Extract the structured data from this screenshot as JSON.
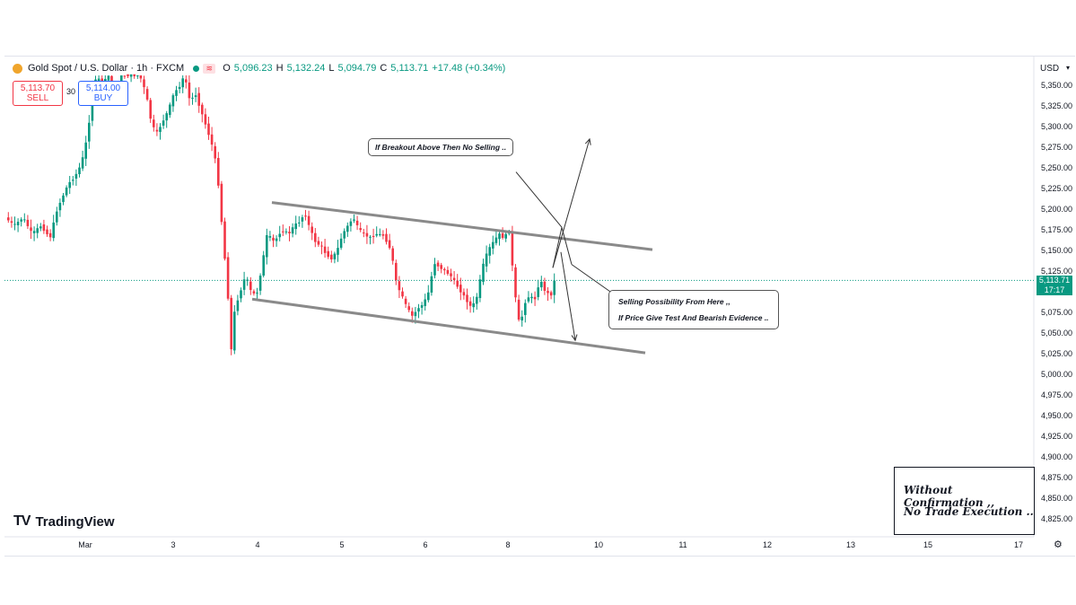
{
  "header": {
    "symbol": "Gold Spot / U.S. Dollar · 1h · FXCM",
    "open_label": "O",
    "open": "5,096.23",
    "high_label": "H",
    "high": "5,132.24",
    "low_label": "L",
    "low": "5,094.79",
    "close_label": "C",
    "close": "5,113.71",
    "change": "+17.48 (+0.34%)"
  },
  "trade": {
    "sell_price": "5,113.70",
    "sell_label": "SELL",
    "buy_price": "5,114.00",
    "buy_label": "BUY",
    "spread": "30"
  },
  "currency": "USD",
  "last_price_tag": {
    "price": "5,113.71",
    "countdown": "17:17"
  },
  "logo_text": "TradingView",
  "annotations": {
    "breakout_note": "If Breakout Above Then No Selling ..",
    "selling_note_line1": "Selling Possibility From Here ,,",
    "selling_note_line2": "If Price Give Test And Bearish Evidence ..",
    "confirm_line1": "Without Confirmation ,,",
    "confirm_line2": "No Trade Execution .."
  },
  "colors": {
    "up": "#089981",
    "down": "#f23645",
    "accent": "#2962ff",
    "line": "#888888"
  },
  "chart_data": {
    "type": "candlestick",
    "x_ticks": [
      "Mar",
      "3",
      "4",
      "5",
      "6",
      "8",
      "10",
      "11",
      "12",
      "13",
      "15",
      "17"
    ],
    "y_ticks": [
      "5,350.00",
      "5,325.00",
      "5,300.00",
      "5,275.00",
      "5,250.00",
      "5,225.00",
      "5,200.00",
      "5,175.00",
      "5,150.00",
      "5,125.00",
      "5,075.00",
      "5,050.00",
      "5,025.00",
      "5,000.00",
      "4,975.00",
      "4,950.00",
      "4,925.00",
      "4,900.00",
      "4,875.00",
      "4,850.00",
      "4,825.00"
    ],
    "ylim": [
      4810,
      5362
    ],
    "last_price": 5113.71,
    "candle_path": [
      [
        0,
        5190
      ],
      [
        10,
        5180
      ],
      [
        20,
        5190
      ],
      [
        30,
        5170
      ],
      [
        40,
        5180
      ],
      [
        50,
        5165
      ],
      [
        58,
        5200
      ],
      [
        64,
        5215
      ],
      [
        70,
        5230
      ],
      [
        78,
        5240
      ],
      [
        85,
        5255
      ],
      [
        92,
        5290
      ],
      [
        96,
        5330
      ],
      [
        102,
        5362
      ],
      [
        108,
        5350
      ],
      [
        115,
        5362
      ],
      [
        122,
        5340
      ],
      [
        130,
        5362
      ],
      [
        140,
        5362
      ],
      [
        150,
        5362
      ],
      [
        157,
        5340
      ],
      [
        162,
        5310
      ],
      [
        168,
        5290
      ],
      [
        175,
        5305
      ],
      [
        182,
        5320
      ],
      [
        188,
        5340
      ],
      [
        195,
        5350
      ],
      [
        200,
        5362
      ],
      [
        206,
        5330
      ],
      [
        212,
        5340
      ],
      [
        218,
        5320
      ],
      [
        224,
        5300
      ],
      [
        230,
        5280
      ],
      [
        236,
        5250
      ],
      [
        240,
        5200
      ],
      [
        244,
        5150
      ],
      [
        248,
        5100
      ],
      [
        252,
        5030
      ],
      [
        256,
        5080
      ],
      [
        262,
        5100
      ],
      [
        268,
        5120
      ],
      [
        274,
        5100
      ],
      [
        280,
        5095
      ],
      [
        286,
        5130
      ],
      [
        292,
        5170
      ],
      [
        300,
        5160
      ],
      [
        308,
        5175
      ],
      [
        316,
        5170
      ],
      [
        322,
        5180
      ],
      [
        328,
        5185
      ],
      [
        334,
        5195
      ],
      [
        340,
        5175
      ],
      [
        346,
        5160
      ],
      [
        352,
        5155
      ],
      [
        358,
        5145
      ],
      [
        364,
        5140
      ],
      [
        370,
        5150
      ],
      [
        376,
        5170
      ],
      [
        382,
        5180
      ],
      [
        388,
        5190
      ],
      [
        394,
        5175
      ],
      [
        400,
        5170
      ],
      [
        406,
        5165
      ],
      [
        414,
        5170
      ],
      [
        422,
        5168
      ],
      [
        430,
        5150
      ],
      [
        436,
        5110
      ],
      [
        442,
        5095
      ],
      [
        448,
        5080
      ],
      [
        454,
        5070
      ],
      [
        460,
        5080
      ],
      [
        466,
        5085
      ],
      [
        472,
        5100
      ],
      [
        478,
        5135
      ],
      [
        484,
        5130
      ],
      [
        490,
        5125
      ],
      [
        496,
        5120
      ],
      [
        502,
        5110
      ],
      [
        508,
        5100
      ],
      [
        514,
        5090
      ],
      [
        520,
        5080
      ],
      [
        526,
        5095
      ],
      [
        532,
        5130
      ],
      [
        538,
        5150
      ],
      [
        544,
        5160
      ],
      [
        550,
        5170
      ],
      [
        556,
        5165
      ],
      [
        562,
        5175
      ],
      [
        566,
        5120
      ],
      [
        570,
        5080
      ],
      [
        574,
        5055
      ],
      [
        578,
        5085
      ],
      [
        584,
        5095
      ],
      [
        590,
        5090
      ],
      [
        596,
        5115
      ],
      [
        602,
        5100
      ],
      [
        608,
        5095
      ],
      [
        612,
        5113
      ]
    ],
    "channel_upper": [
      [
        303,
        5208
      ],
      [
        727,
        5151
      ]
    ],
    "channel_lower": [
      [
        281,
        5091
      ],
      [
        719,
        5026
      ]
    ],
    "arrows": [
      {
        "from": [
          616,
          5129
        ],
        "to": [
          657,
          5285
        ]
      },
      {
        "from": [
          625,
          5148
        ],
        "to": [
          641,
          5041
        ]
      }
    ],
    "callout_lines": [
      {
        "from": [
          575,
          5245
        ],
        "to": [
          626,
          5178
        ]
      },
      {
        "from": [
          637,
          5133
        ],
        "to": [
          684,
          5097
        ]
      }
    ],
    "grid": false,
    "legend_position": "top-left"
  }
}
